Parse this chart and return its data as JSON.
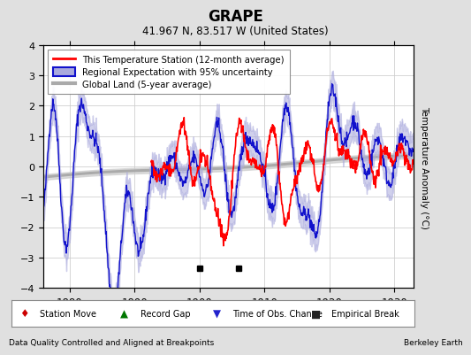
{
  "title": "GRAPE",
  "subtitle": "41.967 N, 83.517 W (United States)",
  "ylabel": "Temperature Anomaly (°C)",
  "xlabel_bottom_left": "Data Quality Controlled and Aligned at Breakpoints",
  "xlabel_bottom_right": "Berkeley Earth",
  "xlim": [
    1876,
    1933
  ],
  "ylim": [
    -4,
    4
  ],
  "yticks": [
    -4,
    -3,
    -2,
    -1,
    0,
    1,
    2,
    3,
    4
  ],
  "xticks": [
    1880,
    1890,
    1900,
    1910,
    1920,
    1930
  ],
  "background_color": "#e0e0e0",
  "plot_bg_color": "#ffffff",
  "grid_color": "#cccccc",
  "empirical_breaks": [
    1900,
    1906
  ],
  "empirical_break_y": -3.35,
  "legend_entries": [
    "This Temperature Station (12-month average)",
    "Regional Expectation with 95% uncertainty",
    "Global Land (5-year average)"
  ],
  "red_line_color": "#ff0000",
  "blue_line_color": "#1111cc",
  "blue_fill_color": "#aaaadd",
  "gray_line_color": "#aaaaaa",
  "gray_fill_color": "#cccccc"
}
